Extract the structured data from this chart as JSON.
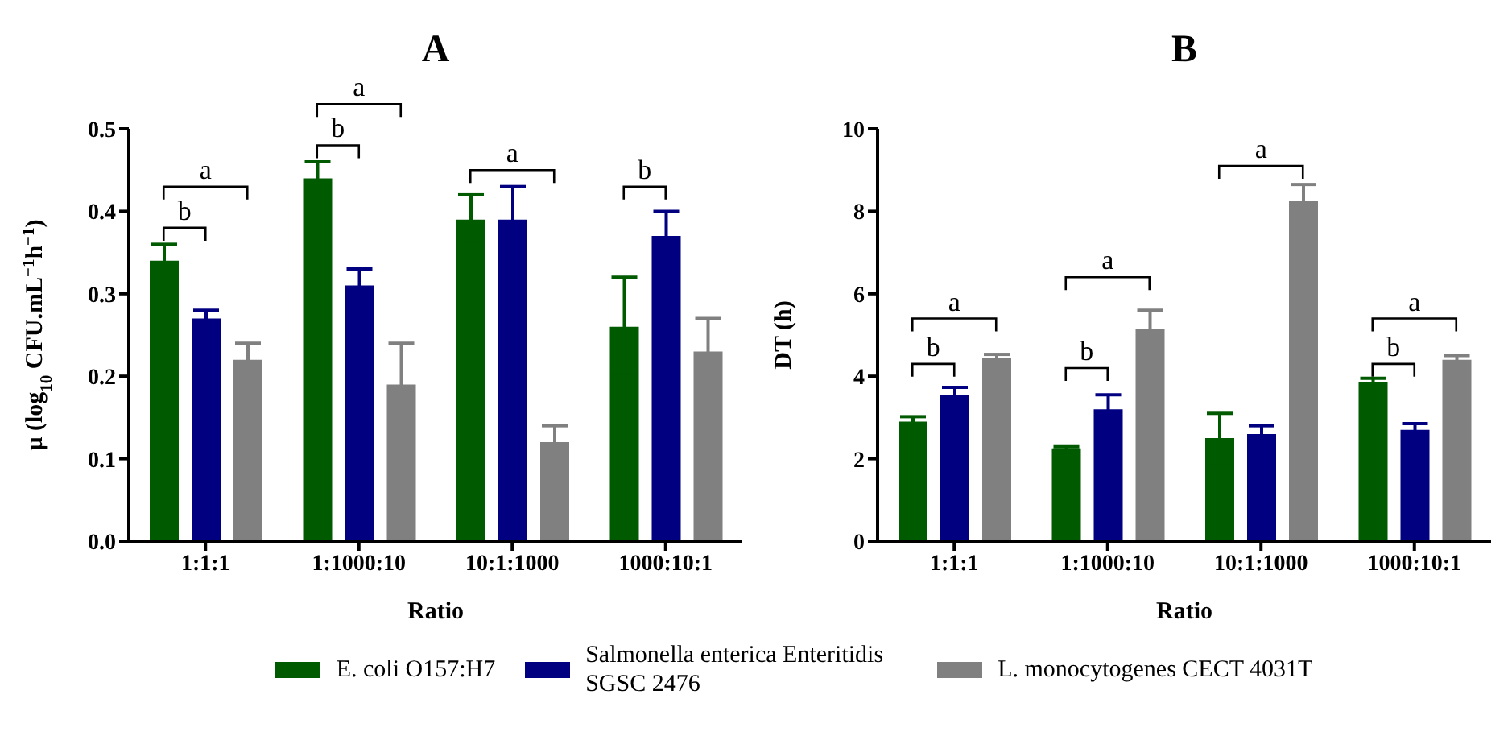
{
  "chart_data": [
    {
      "type": "bar",
      "title": "A",
      "xlabel": "Ratio",
      "ylabel": "μ (log$_{10}$ CFU.mL$^{−1}$h$^{−1}$)",
      "categories": [
        "1:1:1",
        "1:1000:10",
        "10:1:1000",
        "1000:10:1"
      ],
      "ylim": [
        0,
        0.5
      ],
      "yticks": [
        {
          "value": 0,
          "label": "0.0"
        },
        0.1,
        0.2,
        0.3,
        0.4,
        0.5
      ],
      "legend": "bottom",
      "annotations": [
        "a",
        "b",
        "a",
        "b",
        "a",
        "b"
      ],
      "series": [
        {
          "name": "E. coli O157:H7",
          "color": "#005a00",
          "values": [
            0.34,
            0.44,
            0.39,
            0.26
          ],
          "errors": [
            0.02,
            0.02,
            0.03,
            0.06
          ]
        },
        {
          "name": "Salmonella enterica Enteritidis SGSC 2476",
          "color": "#000080",
          "values": [
            0.27,
            0.31,
            0.39,
            0.37
          ],
          "errors": [
            0.01,
            0.02,
            0.04,
            0.03
          ]
        },
        {
          "name": "L. monocytogenes CECT 4031T",
          "color": "#808080",
          "values": [
            0.22,
            0.19,
            0.12,
            0.23
          ],
          "errors": [
            0.02,
            0.05,
            0.02,
            0.04
          ]
        }
      ]
    },
    {
      "type": "bar",
      "title": "B",
      "xlabel": "Ratio",
      "ylabel": "DT (h)",
      "categories": [
        "1:1:1",
        "1:1000:10",
        "10:1:1000",
        "1000:10:1"
      ],
      "ylim": [
        0,
        10
      ],
      "yticks": [
        0,
        2,
        4,
        6,
        8,
        10
      ],
      "annotations": [
        "a",
        "b",
        "a",
        "b",
        "a",
        "a",
        "b"
      ],
      "series": [
        {
          "color": "#005a00",
          "values": [
            2.9,
            2.25,
            2.5,
            3.85
          ],
          "errors": [
            0.12,
            0.04,
            0.6,
            0.1
          ]
        },
        {
          "color": "#000080",
          "values": [
            3.55,
            3.2,
            2.6,
            2.7
          ],
          "errors": [
            0.18,
            0.35,
            0.2,
            0.15
          ]
        },
        {
          "color": "#808080",
          "values": [
            4.45,
            5.15,
            8.25,
            4.4
          ],
          "errors": [
            0.08,
            0.45,
            0.4,
            0.1
          ]
        }
      ]
    }
  ]
}
